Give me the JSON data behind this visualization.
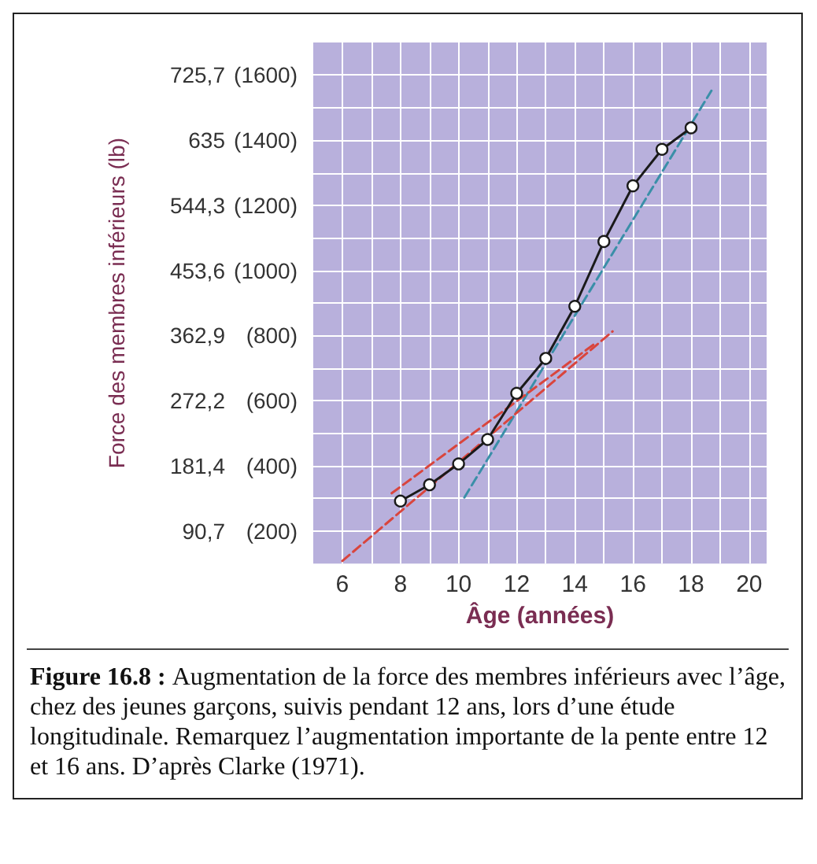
{
  "chart_data": {
    "type": "line",
    "xlabel": "Âge (années)",
    "y2label": "Force des membres inférieurs (lb)",
    "x": [
      8,
      9,
      10,
      11,
      12,
      13,
      14,
      15,
      16,
      17,
      18
    ],
    "series": [
      {
        "color": "#1a1a1a",
        "marker": "circle",
        "line_style": "solid",
        "values": [
          292,
          342,
          406,
          481,
          623,
          730,
          890,
          1089,
          1260,
          1372,
          1438
        ]
      },
      {
        "type": "line",
        "color": "#3a8fa8",
        "marker": "none",
        "line_style": "dashed",
        "x": [
          10.2,
          18.7
        ],
        "values": [
          303,
          1552
        ]
      },
      {
        "type": "line",
        "color": "#d9453d",
        "marker": "none",
        "line_style": "dashed",
        "x": [
          6,
          15.3
        ],
        "values": [
          108,
          813
        ]
      },
      {
        "type": "line",
        "color": "#d9453d",
        "marker": "none",
        "line_style": "dashed",
        "x": [
          7.7,
          14.7
        ],
        "values": [
          316,
          776
        ]
      }
    ],
    "xlim": [
      5,
      20.6
    ],
    "xticks": [
      6,
      {
        "value": 7,
        "label": null
      },
      8,
      {
        "value": 9,
        "label": null
      },
      10,
      {
        "value": 11,
        "label": null
      },
      12,
      {
        "value": 13,
        "label": null
      },
      14,
      {
        "value": 15,
        "label": null
      },
      16,
      {
        "value": 17,
        "label": null
      },
      18,
      {
        "value": 19,
        "label": null
      },
      20
    ],
    "ylim": [
      100,
      1700
    ],
    "yticks": [
      {
        "value": 200,
        "label": "(200)"
      },
      {
        "value": 300,
        "label": null
      },
      {
        "value": 400,
        "label": "(400)"
      },
      {
        "value": 500,
        "label": null
      },
      {
        "value": 600,
        "label": "(600)"
      },
      {
        "value": 700,
        "label": null
      },
      {
        "value": 800,
        "label": "(800)"
      },
      {
        "value": 900,
        "label": null
      },
      {
        "value": 1000,
        "label": "(1000)"
      },
      {
        "value": 1100,
        "label": null
      },
      {
        "value": 1200,
        "label": "(1200)"
      },
      {
        "value": 1300,
        "label": null
      },
      {
        "value": 1400,
        "label": "(1400)"
      },
      {
        "value": 1500,
        "label": null
      },
      {
        "value": 1600,
        "label": "(1600)"
      }
    ],
    "y2lim": [
      45.36,
      771.1
    ],
    "y2ticks": [
      {
        "value": 90.7,
        "label": "90,7"
      },
      {
        "value": 181.4,
        "label": "181,4"
      },
      {
        "value": 272.2,
        "label": "272,2"
      },
      {
        "value": 362.9,
        "label": "362,9"
      },
      {
        "value": 453.6,
        "label": "453,6"
      },
      {
        "value": 544.3,
        "label": "544,3"
      },
      635,
      {
        "value": 725.7,
        "label": "725,7"
      }
    ],
    "grid": true,
    "annotations": [
      "Figure 16.8 :",
      "Augmentation de la force des membres inférieurs avec l’âge, chez des jeunes garçons, suivis pendant 12 ans, lors d’une étude longitudinale. Remarquez l’augmentation importante de la pente entre 12 et 16 ans. D’après Clarke (1971)."
    ]
  }
}
